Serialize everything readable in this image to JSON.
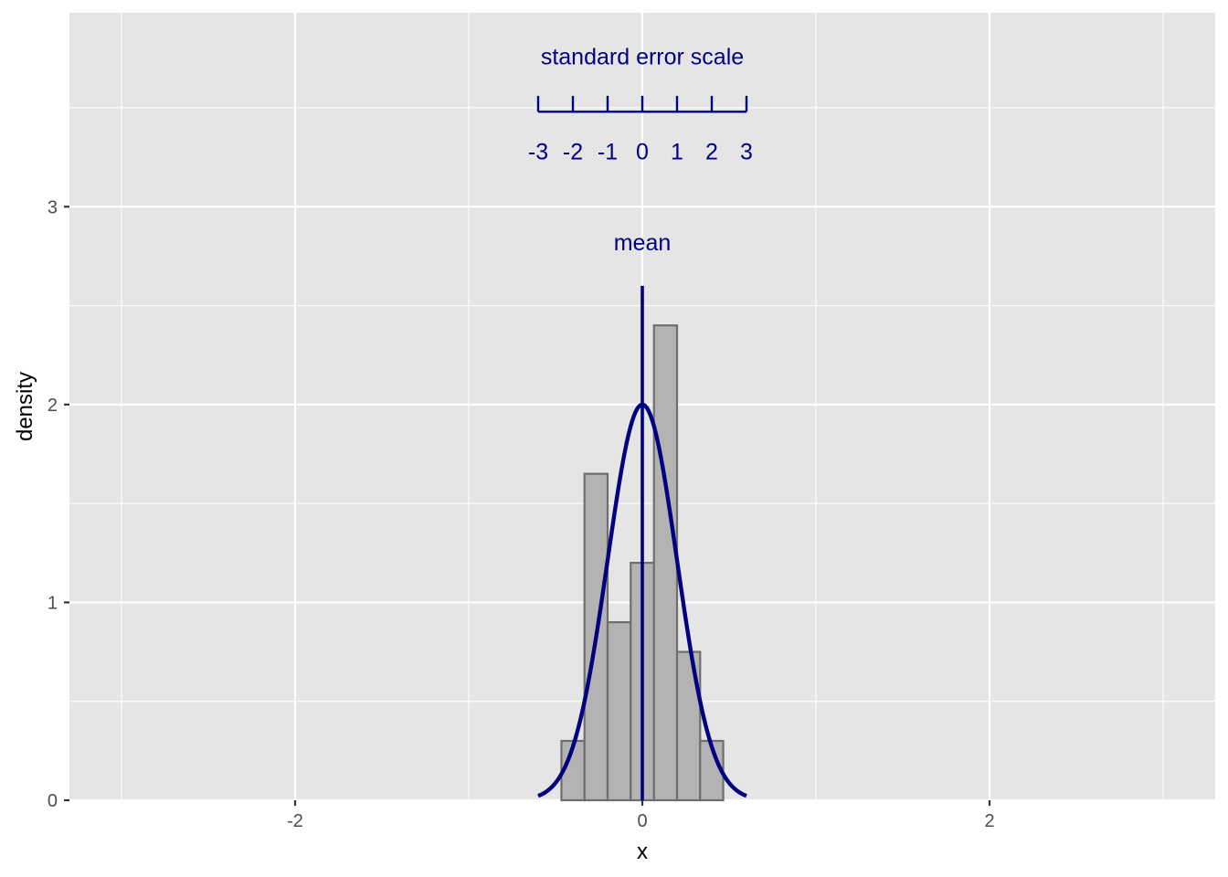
{
  "chart_data": {
    "type": "bar",
    "xlabel": "x",
    "ylabel": "density",
    "xlim": [
      -3.3,
      3.3
    ],
    "ylim": [
      0,
      3.98
    ],
    "x_ticks": [
      -2,
      0,
      2
    ],
    "x_tick_labels": [
      "-2",
      "0",
      "2"
    ],
    "y_ticks": [
      0,
      1,
      2,
      3
    ],
    "y_tick_labels": [
      "0",
      "1",
      "2",
      "3"
    ],
    "grid": true,
    "histogram": {
      "bin_width": 0.133,
      "bins": [
        {
          "x_min": -0.466,
          "x_max": -0.333,
          "density": 0.3
        },
        {
          "x_min": -0.333,
          "x_max": -0.2,
          "density": 1.65
        },
        {
          "x_min": -0.2,
          "x_max": -0.067,
          "density": 0.9
        },
        {
          "x_min": -0.067,
          "x_max": 0.067,
          "density": 1.2
        },
        {
          "x_min": 0.067,
          "x_max": 0.2,
          "density": 2.4
        },
        {
          "x_min": 0.2,
          "x_max": 0.333,
          "density": 0.75
        },
        {
          "x_min": 0.333,
          "x_max": 0.466,
          "density": 0.3
        }
      ]
    },
    "normal_curve": {
      "mean": 0,
      "sd": 0.2,
      "x_range": [
        -0.6,
        0.6
      ],
      "peak_density": 2.0
    },
    "mean_line": {
      "x": 0,
      "y_from": 0,
      "y_to": 2.6,
      "label": "mean",
      "label_y": 2.78
    },
    "se_scale": {
      "title": "standard error scale",
      "title_y": 3.72,
      "line_y": 3.48,
      "tick_top_y": 3.56,
      "label_y": 3.24,
      "standard_error": 0.2,
      "ticks": [
        -3,
        -2,
        -1,
        0,
        1,
        2,
        3
      ],
      "tick_labels": [
        "-3",
        "-2",
        "-1",
        "0",
        "1",
        "2",
        "3"
      ]
    },
    "colors": {
      "annotation": "#000080",
      "bar_fill": "#b3b3b3",
      "bar_outline": "#6e6e6e",
      "panel": "#e5e5e5"
    }
  }
}
